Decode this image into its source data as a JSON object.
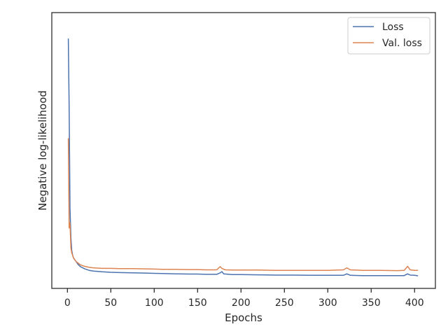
{
  "chart_data": {
    "type": "line",
    "title": "",
    "xlabel": "Epochs",
    "ylabel": "Negative log-likelihood",
    "xlim": [
      -18,
      424
    ],
    "ylim": [
      0,
      1
    ],
    "xticks": [
      0,
      50,
      100,
      150,
      200,
      250,
      300,
      350,
      400
    ],
    "xtick_labels": [
      "0",
      "50",
      "100",
      "150",
      "200",
      "250",
      "300",
      "350",
      "400"
    ],
    "y_tick_labels_shown": false,
    "grid": false,
    "legend_position": "top-right",
    "colors": {
      "loss": "#4c72b0",
      "val_loss": "#dd8452",
      "axes": "#262626"
    },
    "series": [
      {
        "name": "Loss",
        "color": "#4c72b0",
        "points": [
          [
            1,
            0.98
          ],
          [
            2,
            0.7
          ],
          [
            3,
            0.3
          ],
          [
            4,
            0.18
          ],
          [
            5,
            0.13
          ],
          [
            6,
            0.11
          ],
          [
            7,
            0.1
          ],
          [
            8,
            0.095
          ],
          [
            9,
            0.09
          ],
          [
            10,
            0.085
          ],
          [
            12,
            0.075
          ],
          [
            15,
            0.065
          ],
          [
            20,
            0.056
          ],
          [
            25,
            0.05
          ],
          [
            30,
            0.047
          ],
          [
            40,
            0.044
          ],
          [
            50,
            0.042
          ],
          [
            60,
            0.041
          ],
          [
            75,
            0.04
          ],
          [
            90,
            0.039
          ],
          [
            100,
            0.038
          ],
          [
            110,
            0.037
          ],
          [
            125,
            0.036
          ],
          [
            140,
            0.035
          ],
          [
            150,
            0.035
          ],
          [
            160,
            0.034
          ],
          [
            172,
            0.034
          ],
          [
            176,
            0.04
          ],
          [
            178,
            0.045
          ],
          [
            180,
            0.036
          ],
          [
            190,
            0.033
          ],
          [
            200,
            0.033
          ],
          [
            220,
            0.032
          ],
          [
            240,
            0.031
          ],
          [
            260,
            0.031
          ],
          [
            280,
            0.03
          ],
          [
            300,
            0.03
          ],
          [
            318,
            0.03
          ],
          [
            322,
            0.036
          ],
          [
            326,
            0.03
          ],
          [
            340,
            0.029
          ],
          [
            360,
            0.029
          ],
          [
            380,
            0.029
          ],
          [
            388,
            0.029
          ],
          [
            392,
            0.036
          ],
          [
            395,
            0.031
          ],
          [
            400,
            0.03
          ],
          [
            404,
            0.028
          ]
        ]
      },
      {
        "name": "Val. loss",
        "color": "#dd8452",
        "points": [
          [
            1,
            0.58
          ],
          [
            2,
            0.22
          ],
          [
            3,
            0.24
          ],
          [
            4,
            0.14
          ],
          [
            5,
            0.12
          ],
          [
            6,
            0.11
          ],
          [
            7,
            0.1
          ],
          [
            8,
            0.095
          ],
          [
            10,
            0.085
          ],
          [
            12,
            0.08
          ],
          [
            15,
            0.072
          ],
          [
            20,
            0.066
          ],
          [
            25,
            0.062
          ],
          [
            30,
            0.06
          ],
          [
            40,
            0.058
          ],
          [
            50,
            0.058
          ],
          [
            60,
            0.057
          ],
          [
            75,
            0.057
          ],
          [
            90,
            0.056
          ],
          [
            100,
            0.055
          ],
          [
            110,
            0.054
          ],
          [
            125,
            0.054
          ],
          [
            140,
            0.053
          ],
          [
            150,
            0.053
          ],
          [
            160,
            0.052
          ],
          [
            172,
            0.052
          ],
          [
            176,
            0.065
          ],
          [
            178,
            0.058
          ],
          [
            182,
            0.052
          ],
          [
            190,
            0.051
          ],
          [
            200,
            0.051
          ],
          [
            220,
            0.051
          ],
          [
            240,
            0.05
          ],
          [
            260,
            0.05
          ],
          [
            280,
            0.05
          ],
          [
            300,
            0.05
          ],
          [
            318,
            0.052
          ],
          [
            322,
            0.06
          ],
          [
            326,
            0.052
          ],
          [
            340,
            0.05
          ],
          [
            360,
            0.05
          ],
          [
            380,
            0.049
          ],
          [
            388,
            0.05
          ],
          [
            392,
            0.066
          ],
          [
            395,
            0.052
          ],
          [
            400,
            0.05
          ],
          [
            404,
            0.05
          ]
        ]
      }
    ]
  }
}
